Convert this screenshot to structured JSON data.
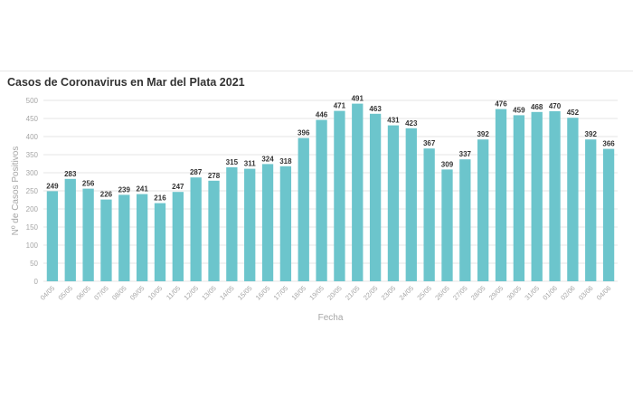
{
  "colors": {
    "bar": "#6cc5cc",
    "grid": "#e6e6e6",
    "axis_text": "#a6a6a6",
    "label_text": "#333333"
  },
  "chart_data": {
    "type": "bar",
    "title": "Casos de Coronavirus en Mar del Plata 2021",
    "xlabel": "Fecha",
    "ylabel": "Nº de Casos Positivos",
    "ylim": [
      0,
      500
    ],
    "yticks": [
      0,
      50,
      100,
      150,
      200,
      250,
      300,
      350,
      400,
      450,
      500
    ],
    "grid": true,
    "categories": [
      "04/05",
      "05/05",
      "06/05",
      "07/05",
      "08/05",
      "09/05",
      "10/05",
      "11/05",
      "12/05",
      "13/05",
      "14/05",
      "15/05",
      "16/05",
      "17/05",
      "18/05",
      "19/05",
      "20/05",
      "21/05",
      "22/05",
      "23/05",
      "24/05",
      "25/05",
      "26/05",
      "27/05",
      "28/05",
      "29/05",
      "30/05",
      "31/05",
      "01/06",
      "02/06",
      "03/06",
      "04/06"
    ],
    "values": [
      249,
      283,
      256,
      226,
      239,
      241,
      216,
      247,
      287,
      278,
      315,
      311,
      324,
      318,
      396,
      446,
      471,
      491,
      463,
      431,
      423,
      367,
      309,
      337,
      392,
      476,
      459,
      468,
      470,
      452,
      392,
      366
    ]
  }
}
